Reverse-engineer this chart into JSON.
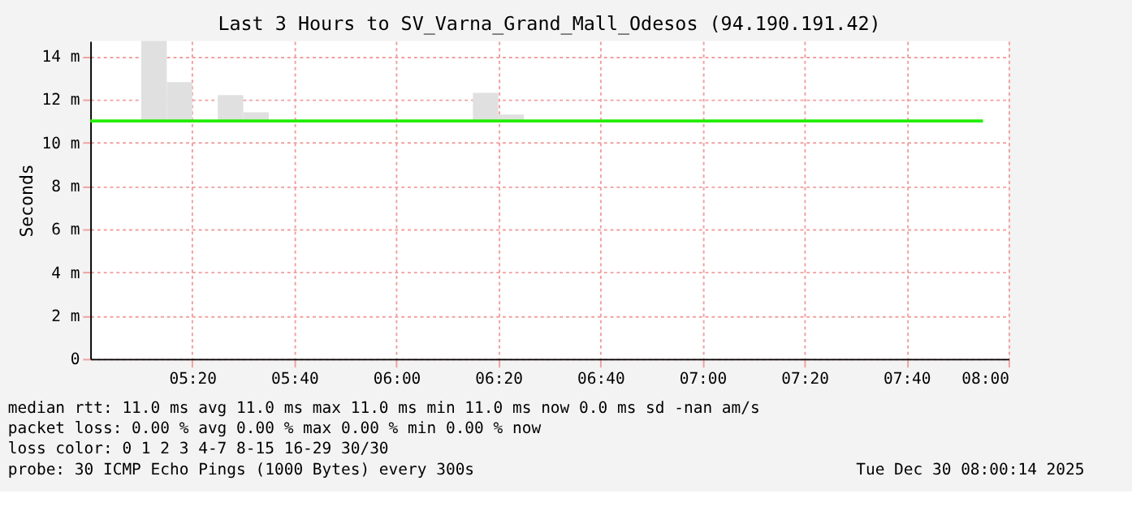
{
  "chart_data": {
    "type": "bar",
    "title": "Last 3 Hours to SV_Varna_Grand_Mall_Odesos (94.190.191.42)",
    "ylabel": "Seconds",
    "xlim": [
      5,
      8
    ],
    "ylim": [
      0,
      14.7
    ],
    "xticks": [
      {
        "value": 5.3333,
        "label": "05:20"
      },
      {
        "value": 5.6667,
        "label": "05:40"
      },
      {
        "value": 6,
        "label": "06:00"
      },
      {
        "value": 6.3333,
        "label": "06:20"
      },
      {
        "value": 6.6667,
        "label": "06:40"
      },
      {
        "value": 7,
        "label": "07:00"
      },
      {
        "value": 7.3333,
        "label": "07:20"
      },
      {
        "value": 7.6667,
        "label": "07:40"
      },
      {
        "value": 8,
        "label": "08:00"
      }
    ],
    "yticks": [
      {
        "value": 0,
        "label": "0"
      },
      {
        "value": 2,
        "label": "2 m"
      },
      {
        "value": 4,
        "label": "4 m"
      },
      {
        "value": 6,
        "label": "6 m"
      },
      {
        "value": 8,
        "label": "8 m"
      },
      {
        "value": 10,
        "label": "10 m"
      },
      {
        "value": 12,
        "label": "12 m"
      },
      {
        "value": 14,
        "label": "14 m"
      }
    ],
    "grid": true,
    "series": [
      {
        "color": "#e0e0e0",
        "x": [
          5.2083,
          5.2917,
          5.4583,
          5.5417,
          6.2917,
          6.375
        ],
        "base": [
          11,
          11,
          11,
          11,
          11,
          11
        ],
        "values": [
          3.7,
          1.8,
          1.2,
          0.4,
          1.3,
          0.3
        ]
      },
      {
        "type": "line",
        "color": "#22ee00",
        "x": [
          5,
          7.9167
        ],
        "values": [
          11,
          11
        ]
      }
    ],
    "annotations": [
      "median rtt:  11.0 ms avg  11.0 ms max  11.0 ms min  11.0 ms now  0.0 ms sd  -nan   am/s",
      "packet loss: 0.00 % avg  0.00 % max  0.00 % min  0.00 % now",
      "loss color:  0  1  2  3  4-7  8-15  16-29  30/30",
      "probe:       30 ICMP Echo Pings (1000 Bytes) every 300s",
      "Tue Dec 30 08:00:14 2025"
    ]
  }
}
